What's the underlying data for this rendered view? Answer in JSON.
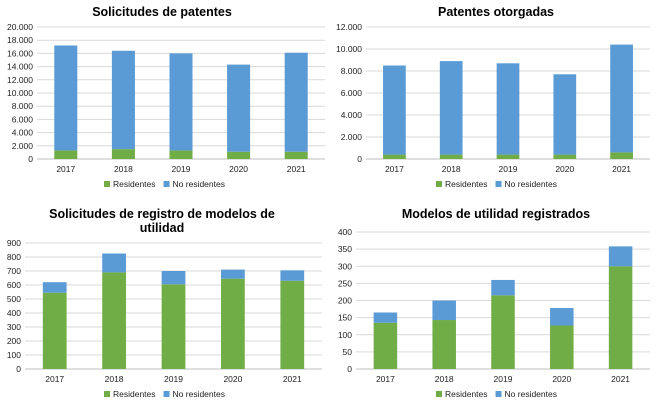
{
  "colors": {
    "residentes": "#70ad47",
    "no_residentes": "#5b9bd5"
  },
  "chart_data": [
    {
      "type": "bar",
      "stacked": true,
      "title": "Solicitudes de patentes",
      "categories": [
        "2017",
        "2018",
        "2019",
        "2020",
        "2021"
      ],
      "series": [
        {
          "name": "Residentes",
          "values": [
            1300,
            1500,
            1300,
            1100,
            1100
          ]
        },
        {
          "name": "No residentes",
          "values": [
            15900,
            14900,
            14700,
            13200,
            15000
          ]
        }
      ],
      "ylim": [
        0,
        20000
      ],
      "yticks": [
        "0",
        "2.000",
        "4.000",
        "6.000",
        "8.000",
        "10.000",
        "12.000",
        "14.000",
        "16.000",
        "18.000",
        "20.000"
      ],
      "grid": true,
      "legend": "bottom"
    },
    {
      "type": "bar",
      "stacked": true,
      "title": "Patentes otorgadas",
      "categories": [
        "2017",
        "2018",
        "2019",
        "2020",
        "2021"
      ],
      "series": [
        {
          "name": "Residentes",
          "values": [
            400,
            400,
            400,
            400,
            600
          ]
        },
        {
          "name": "No residentes",
          "values": [
            8100,
            8500,
            8300,
            7300,
            9800
          ]
        }
      ],
      "ylim": [
        0,
        12000
      ],
      "yticks": [
        "0",
        "2.000",
        "4.000",
        "6.000",
        "8.000",
        "10.000",
        "12.000"
      ],
      "grid": true,
      "legend": "bottom"
    },
    {
      "type": "bar",
      "stacked": true,
      "title": [
        "Solicitudes de registro de modelos de",
        "utilidad"
      ],
      "categories": [
        "2017",
        "2018",
        "2019",
        "2020",
        "2021"
      ],
      "series": [
        {
          "name": "Residentes",
          "values": [
            545,
            690,
            605,
            645,
            630
          ]
        },
        {
          "name": "No residentes",
          "values": [
            75,
            135,
            95,
            65,
            75
          ]
        }
      ],
      "ylim": [
        0,
        900
      ],
      "yticks": [
        "0",
        "100",
        "200",
        "300",
        "400",
        "500",
        "600",
        "700",
        "800",
        "900"
      ],
      "grid": true,
      "legend": "bottom"
    },
    {
      "type": "bar",
      "stacked": true,
      "title": "Modelos de utilidad registrados",
      "categories": [
        "2017",
        "2018",
        "2019",
        "2020",
        "2021"
      ],
      "series": [
        {
          "name": "Residentes",
          "values": [
            135,
            143,
            215,
            127,
            300
          ]
        },
        {
          "name": "No residentes",
          "values": [
            30,
            57,
            45,
            51,
            58
          ]
        }
      ],
      "ylim": [
        0,
        400
      ],
      "yticks": [
        "0",
        "50",
        "100",
        "150",
        "200",
        "250",
        "300",
        "350",
        "400"
      ],
      "grid": true,
      "legend": "bottom"
    }
  ]
}
